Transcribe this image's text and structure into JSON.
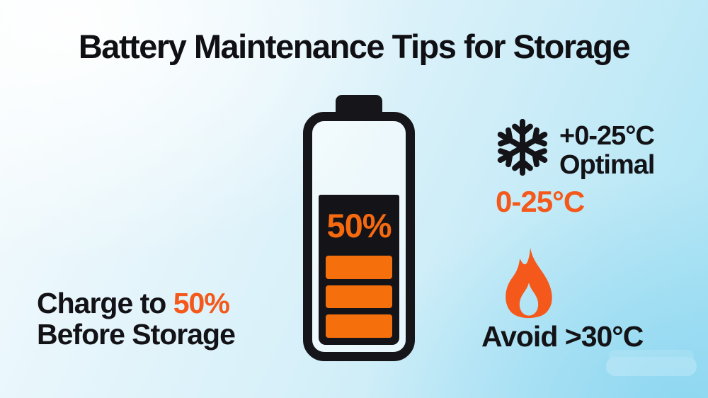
{
  "title": "Battery Maintenance Tips for Storage",
  "battery": {
    "percent_label": "50%",
    "bar_count": 3
  },
  "left_note": {
    "line1_black": "Charge to ",
    "line1_orange": "50%",
    "line2": "Before Storage"
  },
  "cold": {
    "icon": "snowflake-icon",
    "line1": "+0-25°C",
    "line2": "Optimal",
    "range_label": "0-25°C"
  },
  "heat": {
    "icon": "flame-icon",
    "label": "Avoid >30°C"
  },
  "colors": {
    "orange_accent": "#F4581A",
    "orange_fill": "#F5700C",
    "ink_black": "#141418",
    "bg_top_left": "#FDFEFB",
    "bg_bottom_right": "#A7E2F4"
  }
}
